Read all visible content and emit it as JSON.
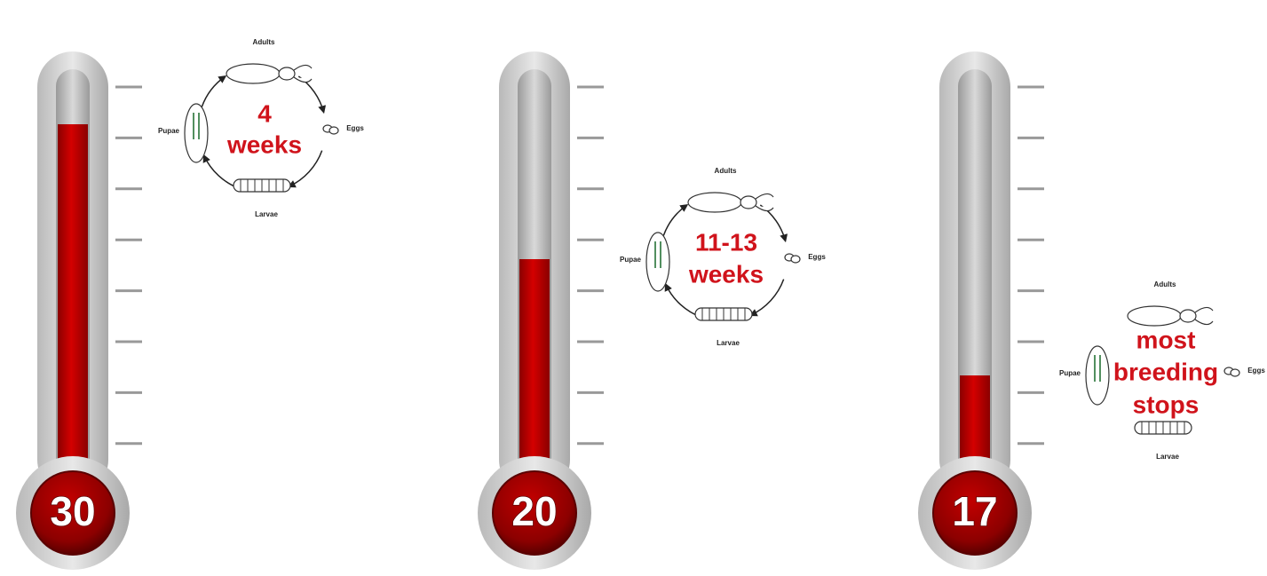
{
  "thermometers": [
    {
      "temperature": 30,
      "duration": [
        "4",
        "weeks"
      ],
      "stages": {
        "adults": "Adults",
        "eggs": "Eggs",
        "larvae": "Larvae",
        "pupae": "Pupae"
      }
    },
    {
      "temperature": 20,
      "duration": [
        "11-13",
        "weeks"
      ],
      "stages": {
        "adults": "Adults",
        "eggs": "Eggs",
        "larvae": "Larvae",
        "pupae": "Pupae"
      }
    },
    {
      "temperature": 17,
      "duration": [
        "most",
        "breeding",
        "stops"
      ],
      "stages": {
        "adults": "Adults",
        "eggs": "Eggs",
        "larvae": "Larvae",
        "pupae": "Pupae"
      }
    }
  ]
}
